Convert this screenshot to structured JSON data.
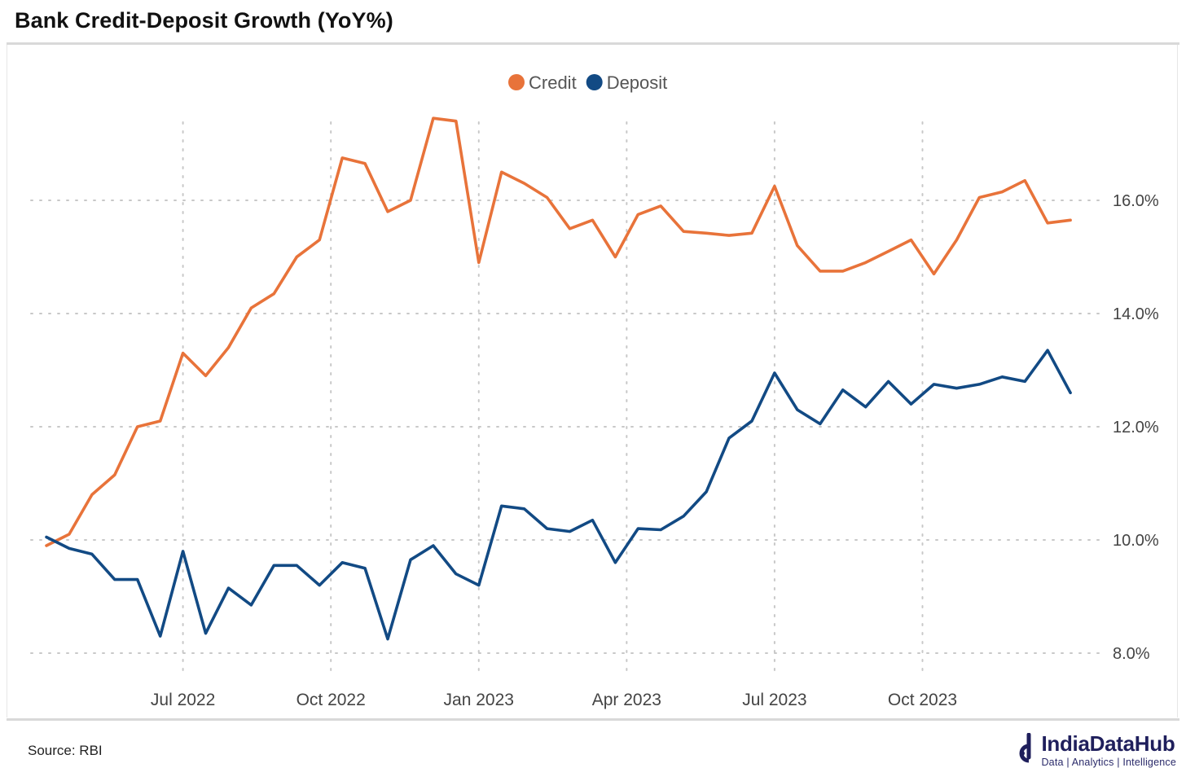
{
  "page": {
    "title": "Bank Credit-Deposit Growth (YoY%)",
    "source": "Source: RBI",
    "brand": {
      "name": "IndiaDataHub",
      "tagline": "Data | Analytics | Intelligence"
    }
  },
  "colors": {
    "credit": "#E8733A",
    "deposit": "#124A84",
    "grid": "#c8c8c8",
    "axis_text": "#444444"
  },
  "chart_data": {
    "type": "line",
    "title": "Bank Credit-Deposit Growth (YoY%)",
    "xlabel": "",
    "ylabel": "",
    "ylim": [
      7.6,
      17.8
    ],
    "yticks": [
      8,
      10,
      12,
      14,
      16
    ],
    "ytick_labels": [
      "8.0%",
      "10.0%",
      "12.0%",
      "14.0%",
      "16.0%"
    ],
    "y_axis_position": "right",
    "grid": "dotted",
    "legend_position": "top-center",
    "xlim": [
      0,
      46
    ],
    "xtick_positions": [
      6,
      12.5,
      19,
      25.5,
      32,
      38.5
    ],
    "xtick_labels": [
      "Jul 2022",
      "Oct 2022",
      "Jan 2023",
      "Apr 2023",
      "Jul 2023",
      "Oct 2023"
    ],
    "series": [
      {
        "name": "Credit",
        "color": "#E8733A",
        "values": [
          9.9,
          10.1,
          10.8,
          11.15,
          12.0,
          12.1,
          13.3,
          12.9,
          13.4,
          14.1,
          14.35,
          15.0,
          15.3,
          16.75,
          16.65,
          15.8,
          16.0,
          17.45,
          17.4,
          14.9,
          16.5,
          16.3,
          16.05,
          15.5,
          15.65,
          15.0,
          15.75,
          15.9,
          15.45,
          15.42,
          15.38,
          15.42,
          16.25,
          15.2,
          14.75,
          14.75,
          14.9,
          15.1,
          15.3,
          14.7,
          15.3,
          16.05,
          16.15,
          16.35,
          15.6,
          15.65
        ]
      },
      {
        "name": "Deposit",
        "color": "#124A84",
        "values": [
          10.05,
          9.85,
          9.75,
          9.3,
          9.3,
          8.3,
          9.8,
          8.35,
          9.15,
          8.85,
          9.55,
          9.55,
          9.2,
          9.6,
          9.5,
          8.25,
          9.65,
          9.9,
          9.4,
          9.2,
          10.6,
          10.55,
          10.2,
          10.15,
          10.35,
          9.6,
          10.2,
          10.18,
          10.42,
          10.85,
          11.8,
          12.1,
          12.95,
          12.3,
          12.05,
          12.65,
          12.35,
          12.8,
          12.4,
          12.75,
          12.68,
          12.75,
          12.88,
          12.8,
          13.35,
          12.6
        ]
      }
    ]
  }
}
